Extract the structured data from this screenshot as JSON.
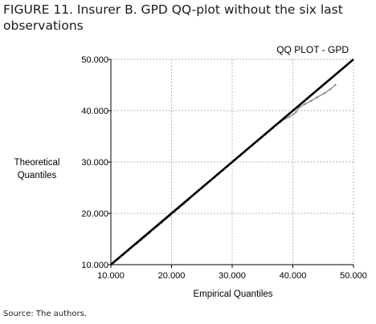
{
  "figure": {
    "title": "FIGURE 11. Insurer B. GPD QQ-plot without the six last observations",
    "source": "Source: The authors."
  },
  "chart_data": {
    "type": "line",
    "title": "QQ PLOT - GPD",
    "xlabel": "Empirical Quantiles",
    "ylabel_lines": [
      "Theoretical",
      "Quantiles"
    ],
    "xlim": [
      10000,
      50000
    ],
    "ylim": [
      10000,
      50000
    ],
    "x_ticks": [
      10000,
      20000,
      30000,
      40000,
      50000
    ],
    "y_ticks": [
      10000,
      20000,
      30000,
      40000,
      50000
    ],
    "x_tick_labels": [
      "10.000",
      "20.000",
      "30.000",
      "40.000",
      "50.000"
    ],
    "y_tick_labels": [
      "10.000",
      "20.000",
      "30.000",
      "40.000",
      "50.000"
    ],
    "grid": "dashed",
    "colors": {
      "reference": "#000000",
      "series": "#8c8c8c",
      "grid": "#9a9a9a"
    },
    "series": [
      {
        "role": "qq-points",
        "x": [
          11200,
          12000,
          12800,
          13500,
          14300,
          15000,
          15700,
          16400,
          17000,
          17700,
          18400,
          19100,
          19800,
          20500,
          21200,
          22000,
          22800,
          23500,
          24300,
          25000,
          25700,
          26400,
          27100,
          27800,
          28500,
          29200,
          29900,
          30600,
          31300,
          32000,
          32700,
          33400,
          34100,
          34800,
          35500,
          36100,
          36700,
          37300,
          38000,
          38700,
          39400,
          40100,
          40500,
          41000,
          42000,
          43000,
          44000,
          45200,
          46200,
          47000
        ],
        "y": [
          11100,
          11900,
          12700,
          13400,
          14100,
          14800,
          15500,
          16200,
          16900,
          17500,
          18200,
          18900,
          19600,
          20300,
          21000,
          21800,
          22600,
          23400,
          24200,
          24900,
          25600,
          26300,
          27000,
          27700,
          28400,
          29100,
          29800,
          30500,
          31200,
          31900,
          32600,
          33300,
          34000,
          34700,
          35400,
          36000,
          36600,
          37200,
          37800,
          38400,
          38800,
          39300,
          39700,
          40600,
          41300,
          41900,
          42600,
          43400,
          44200,
          45000
        ]
      },
      {
        "role": "reference-line",
        "x": [
          10000,
          50000
        ],
        "y": [
          10000,
          50000
        ]
      }
    ]
  }
}
